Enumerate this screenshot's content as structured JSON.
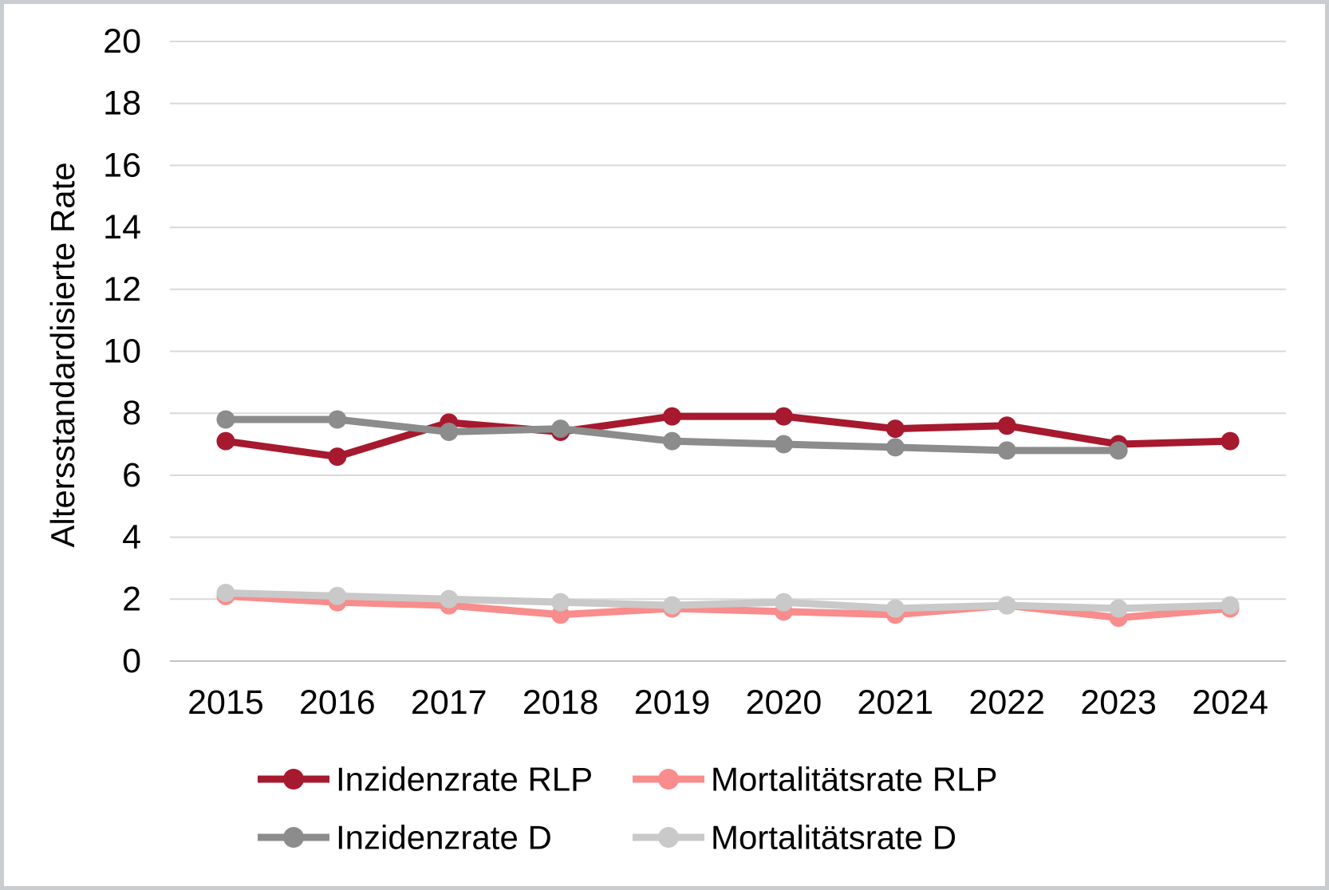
{
  "frame": {
    "background": "#ffffff",
    "border_color": "#c9cdd0"
  },
  "chart_data": {
    "type": "line",
    "title": "",
    "xlabel": "",
    "ylabel": "Altersstandardisierte Rate",
    "ylim": [
      0,
      20
    ],
    "yticks": [
      0,
      2,
      4,
      6,
      8,
      10,
      12,
      14,
      16,
      18,
      20
    ],
    "grid": "horizontal",
    "grid_color": "#d9d9d9",
    "axis_line_color": "#c2c2c2",
    "legend_position": "bottom-two-rows",
    "categories": [
      "2015",
      "2016",
      "2017",
      "2018",
      "2019",
      "2020",
      "2021",
      "2022",
      "2023",
      "2024"
    ],
    "series": [
      {
        "name": "Inzidenzrate RLP",
        "color": "#a6192e",
        "values": [
          7.1,
          6.6,
          7.7,
          7.4,
          7.9,
          7.9,
          7.5,
          7.6,
          7.0,
          7.1
        ]
      },
      {
        "name": "Mortalitätsrate RLP",
        "color": "#f98c8c",
        "values": [
          2.1,
          1.9,
          1.8,
          1.5,
          1.7,
          1.6,
          1.5,
          1.8,
          1.4,
          1.7
        ]
      },
      {
        "name": "Inzidenzrate D",
        "color": "#8c8c8c",
        "values": [
          7.8,
          7.8,
          7.4,
          7.5,
          7.1,
          7.0,
          6.9,
          6.8,
          6.8,
          null
        ]
      },
      {
        "name": "Mortalitätsrate D",
        "color": "#c9c9c9",
        "values": [
          2.2,
          2.1,
          2.0,
          1.9,
          1.8,
          1.9,
          1.7,
          1.8,
          1.7,
          1.8
        ]
      }
    ]
  }
}
